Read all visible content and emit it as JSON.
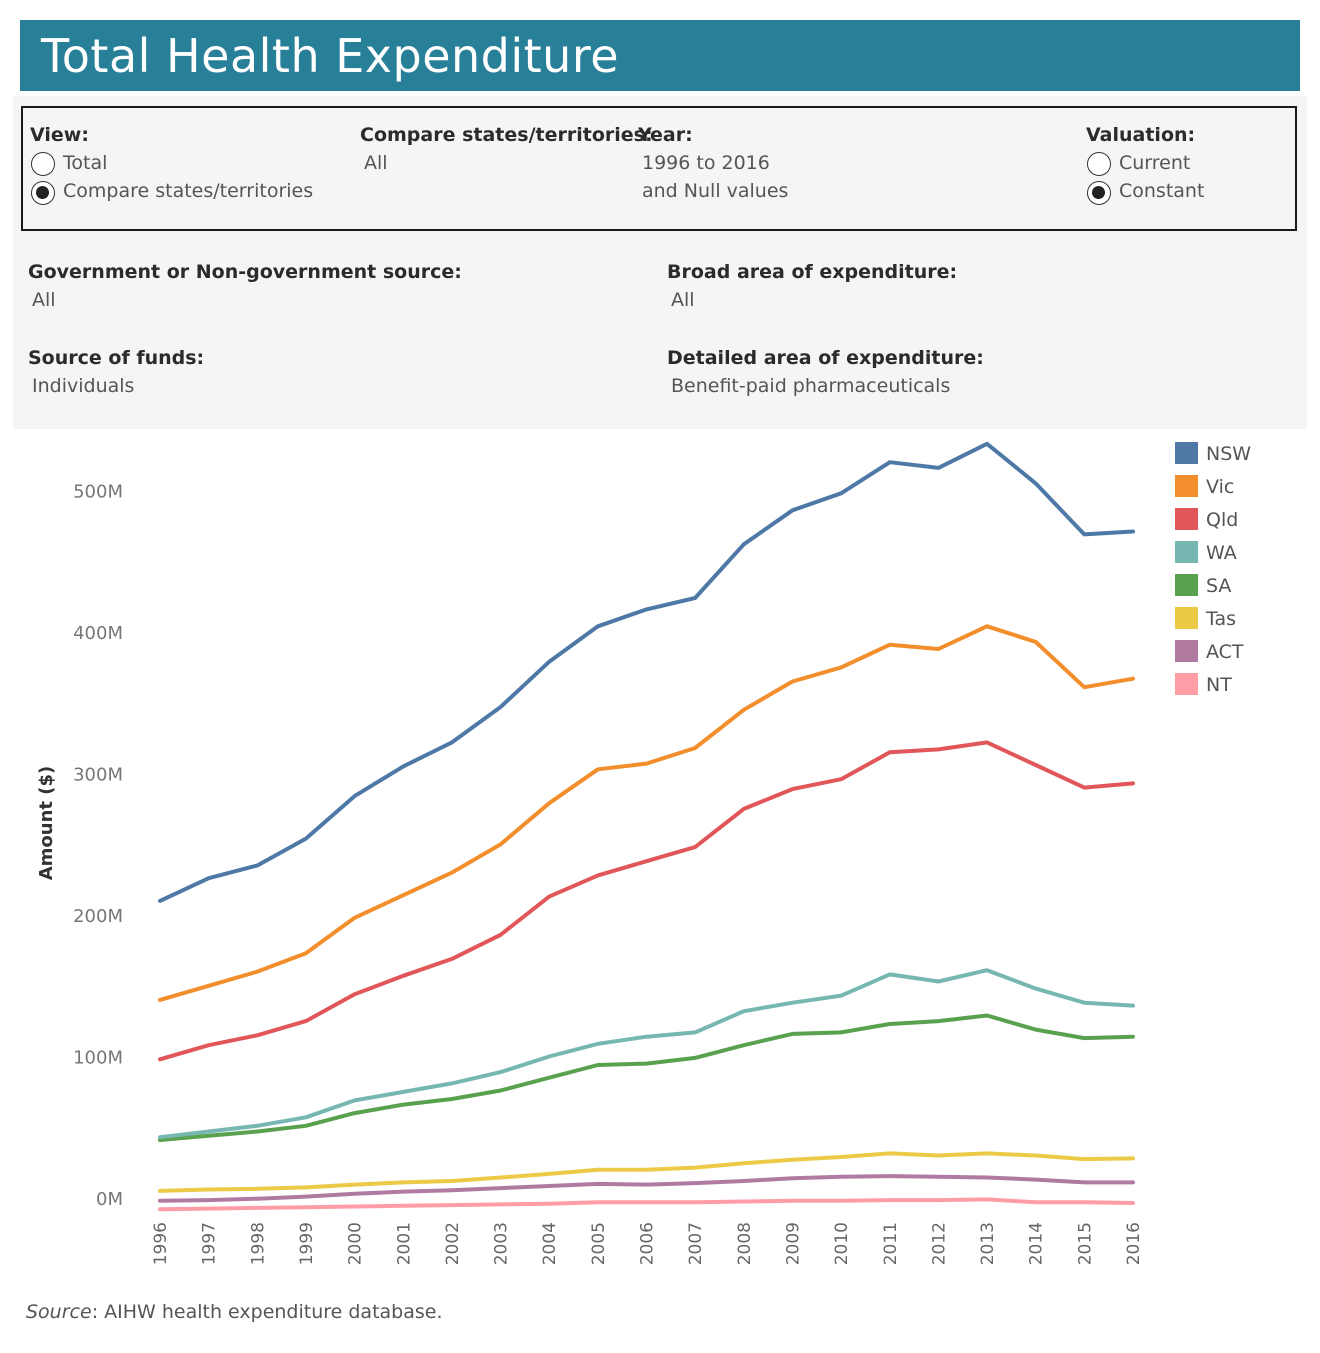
{
  "header": {
    "title": "Total Health Expenditure"
  },
  "filters": {
    "view": {
      "label": "View:",
      "options": [
        {
          "label": "Total",
          "selected": false
        },
        {
          "label": "Compare states/territories",
          "selected": true
        }
      ]
    },
    "compare": {
      "label": "Compare states/territories:",
      "value": "All"
    },
    "year": {
      "label": "Year:",
      "value_line1": "1996 to 2016",
      "value_line2": "and Null values"
    },
    "valuation": {
      "label": "Valuation:",
      "options": [
        {
          "label": "Current",
          "selected": false
        },
        {
          "label": "Constant",
          "selected": true
        }
      ]
    },
    "gov_source": {
      "label": "Government or Non-government source:",
      "value": "All"
    },
    "broad_area": {
      "label": "Broad area of expenditure:",
      "value": "All"
    },
    "source_funds": {
      "label": "Source of funds:",
      "value": "Individuals"
    },
    "detailed_area": {
      "label": "Detailed area of expenditure:",
      "value": "Benefit-paid pharmaceuticals"
    }
  },
  "footer": {
    "source_label": "Source",
    "source_text": ": AIHW health expenditure database."
  },
  "chart_data": {
    "type": "line",
    "title": "",
    "xlabel": "",
    "ylabel": "Amount ($)",
    "ylim": [
      -10,
      540
    ],
    "yticks": [
      0,
      100,
      200,
      300,
      400,
      500
    ],
    "ytick_labels": [
      "0M",
      "100M",
      "200M",
      "300M",
      "400M",
      "500M"
    ],
    "grid": false,
    "legend": "right",
    "x": [
      "1996",
      "1997",
      "1998",
      "1999",
      "2000",
      "2001",
      "2002",
      "2003",
      "2004",
      "2005",
      "2006",
      "2007",
      "2008",
      "2009",
      "2010",
      "2011",
      "2012",
      "2013",
      "2014",
      "2015",
      "2016"
    ],
    "series": [
      {
        "name": "NSW",
        "color": "#4e79a7",
        "values": [
          210,
          226,
          235,
          254,
          284,
          305,
          322,
          347,
          379,
          404,
          416,
          424,
          462,
          486,
          498,
          520,
          516,
          533,
          505,
          469,
          471
        ]
      },
      {
        "name": "Vic",
        "color": "#f28e2b",
        "values": [
          140,
          150,
          160,
          173,
          198,
          214,
          230,
          250,
          279,
          303,
          307,
          318,
          345,
          365,
          375,
          391,
          388,
          404,
          393,
          361,
          367
        ]
      },
      {
        "name": "Qld",
        "color": "#e15759",
        "values": [
          98,
          108,
          115,
          125,
          144,
          157,
          169,
          186,
          213,
          228,
          238,
          248,
          275,
          289,
          296,
          315,
          317,
          322,
          306,
          290,
          293
        ]
      },
      {
        "name": "WA",
        "color": "#76b7b2",
        "values": [
          43,
          47,
          51,
          57,
          69,
          75,
          81,
          89,
          100,
          109,
          114,
          117,
          132,
          138,
          143,
          158,
          153,
          161,
          148,
          138,
          136
        ]
      },
      {
        "name": "SA",
        "color": "#59a14f",
        "values": [
          41,
          44,
          47,
          51,
          60,
          66,
          70,
          76,
          85,
          94,
          95,
          99,
          108,
          116,
          117,
          123,
          125,
          129,
          119,
          113,
          114
        ]
      },
      {
        "name": "Tas",
        "color": "#edc948",
        "values": [
          5,
          6,
          6.5,
          7.5,
          9.5,
          11,
          12,
          14.5,
          17,
          20,
          20,
          21.5,
          24.5,
          27,
          29,
          31.5,
          30,
          31.5,
          30,
          27.5,
          28
        ]
      },
      {
        "name": "ACT",
        "color": "#b07aa1",
        "values": [
          -2,
          -1.5,
          -0.5,
          1,
          3,
          4.5,
          5.5,
          7,
          8.5,
          10,
          9.5,
          10.5,
          12,
          14,
          15,
          15.5,
          15,
          14.5,
          13,
          11,
          11
        ]
      },
      {
        "name": "NT",
        "color": "#ff9da7",
        "values": [
          -8,
          -7.5,
          -7,
          -6.5,
          -6,
          -5.5,
          -5,
          -4.5,
          -4,
          -3,
          -3,
          -3,
          -2.5,
          -2,
          -2,
          -1.5,
          -1.5,
          -1,
          -3,
          -3,
          -3.5
        ]
      }
    ]
  }
}
